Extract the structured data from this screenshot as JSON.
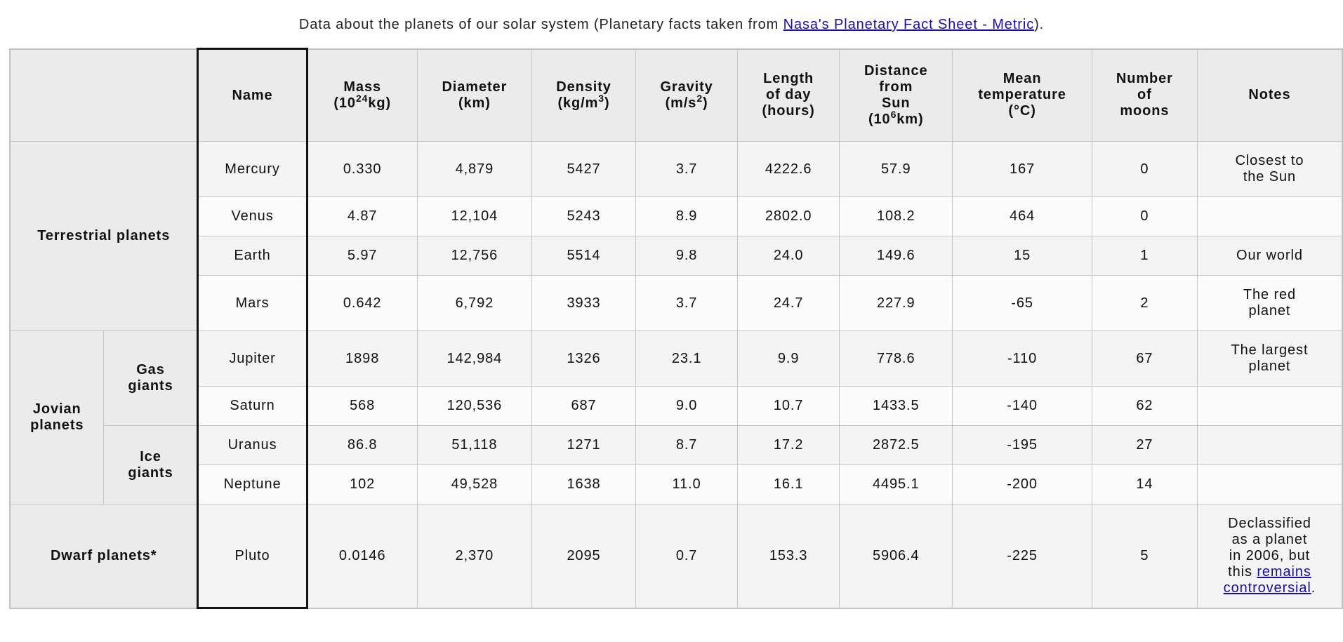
{
  "caption": {
    "text_before": "Data about the planets of our solar system (Planetary facts taken from ",
    "link_text": "Nasa's Planetary Fact Sheet - Metric",
    "text_after": ")."
  },
  "headers": {
    "name": "Name",
    "mass": "Mass",
    "mass_unit_pre": "(10",
    "mass_unit_sup": "24",
    "mass_unit_post": "kg)",
    "diameter": "Diameter",
    "diameter_unit": "(km)",
    "density": "Density",
    "density_unit_pre": "(kg/m",
    "density_unit_sup": "3",
    "density_unit_post": ")",
    "gravity": "Gravity",
    "gravity_unit_pre": "(m/s",
    "gravity_unit_sup": "2",
    "gravity_unit_post": ")",
    "length_of_day_1": "Length",
    "length_of_day_2": "of day",
    "length_of_day_3": "(hours)",
    "distance_1": "Distance",
    "distance_2": "from",
    "distance_3": "Sun",
    "distance_unit_pre": "(10",
    "distance_unit_sup": "6",
    "distance_unit_post": "km)",
    "mean_temp_1": "Mean",
    "mean_temp_2": "temperature",
    "mean_temp_3": "(°C)",
    "moons_1": "Number",
    "moons_2": "of",
    "moons_3": "moons",
    "notes": "Notes"
  },
  "groups": {
    "terrestrial": "Terrestrial planets",
    "jovian_1": "Jovian",
    "jovian_2": "planets",
    "gas_1": "Gas",
    "gas_2": "giants",
    "ice_1": "Ice",
    "ice_2": "giants",
    "dwarf": "Dwarf planets*"
  },
  "planets": [
    {
      "name": "Mercury",
      "mass": "0.330",
      "diameter": "4,879",
      "density": "5427",
      "gravity": "3.7",
      "day": "4222.6",
      "distance": "57.9",
      "temp": "167",
      "moons": "0",
      "notes_1": "Closest to",
      "notes_2": "the Sun"
    },
    {
      "name": "Venus",
      "mass": "4.87",
      "diameter": "12,104",
      "density": "5243",
      "gravity": "8.9",
      "day": "2802.0",
      "distance": "108.2",
      "temp": "464",
      "moons": "0"
    },
    {
      "name": "Earth",
      "mass": "5.97",
      "diameter": "12,756",
      "density": "5514",
      "gravity": "9.8",
      "day": "24.0",
      "distance": "149.6",
      "temp": "15",
      "moons": "1",
      "notes_1": "Our world"
    },
    {
      "name": "Mars",
      "mass": "0.642",
      "diameter": "6,792",
      "density": "3933",
      "gravity": "3.7",
      "day": "24.7",
      "distance": "227.9",
      "temp": "-65",
      "moons": "2",
      "notes_1": "The red",
      "notes_2": "planet"
    },
    {
      "name": "Jupiter",
      "mass": "1898",
      "diameter": "142,984",
      "density": "1326",
      "gravity": "23.1",
      "day": "9.9",
      "distance": "778.6",
      "temp": "-110",
      "moons": "67",
      "notes_1": "The largest",
      "notes_2": "planet"
    },
    {
      "name": "Saturn",
      "mass": "568",
      "diameter": "120,536",
      "density": "687",
      "gravity": "9.0",
      "day": "10.7",
      "distance": "1433.5",
      "temp": "-140",
      "moons": "62"
    },
    {
      "name": "Uranus",
      "mass": "86.8",
      "diameter": "51,118",
      "density": "1271",
      "gravity": "8.7",
      "day": "17.2",
      "distance": "2872.5",
      "temp": "-195",
      "moons": "27"
    },
    {
      "name": "Neptune",
      "mass": "102",
      "diameter": "49,528",
      "density": "1638",
      "gravity": "11.0",
      "day": "16.1",
      "distance": "4495.1",
      "temp": "-200",
      "moons": "14"
    },
    {
      "name": "Pluto",
      "mass": "0.0146",
      "diameter": "2,370",
      "density": "2095",
      "gravity": "0.7",
      "day": "153.3",
      "distance": "5906.4",
      "temp": "-225",
      "moons": "5",
      "notes_1": "Declassified",
      "notes_2": "as a planet",
      "notes_3": "in 2006, but",
      "notes_4": "this ",
      "notes_link_1": "remains",
      "notes_link_2": "controversial",
      "notes_end": "."
    }
  ]
}
